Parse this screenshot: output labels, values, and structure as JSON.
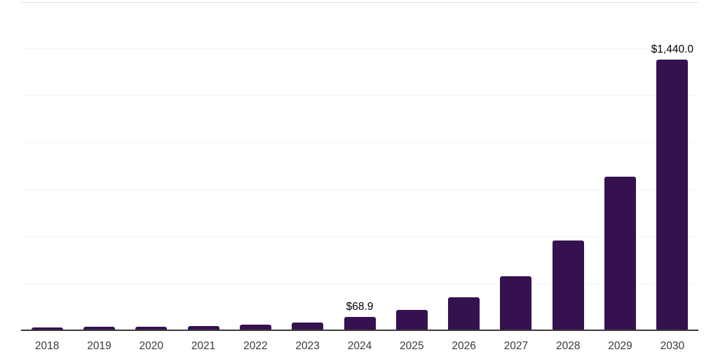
{
  "chart_data": {
    "type": "bar",
    "title": "",
    "xlabel": "",
    "ylabel": "",
    "categories": [
      "2018",
      "2019",
      "2020",
      "2021",
      "2022",
      "2023",
      "2024",
      "2025",
      "2026",
      "2027",
      "2028",
      "2029",
      "2030"
    ],
    "values": [
      13,
      17,
      16,
      20,
      28,
      41,
      68.9,
      108,
      175,
      286,
      476,
      816,
      1440
    ],
    "bar_labels": [
      "",
      "",
      "",
      "",
      "",
      "",
      "$68.9",
      "",
      "",
      "",
      "",
      "",
      "$1,440.0"
    ],
    "unit_prefix": "$",
    "ylim": [
      0,
      1750
    ],
    "gridline_step": 250,
    "grid": "horizontal",
    "legend": "none",
    "y_tick_labels_visible": false,
    "colors": {
      "bar": "#35124f",
      "axis_line": "#3a3a3a",
      "gridline": "#f3f3f3",
      "top_gridline": "#e2e2e2",
      "tick_text": "#3a3a3a",
      "data_label_text": "#000000",
      "background": "#ffffff"
    }
  }
}
